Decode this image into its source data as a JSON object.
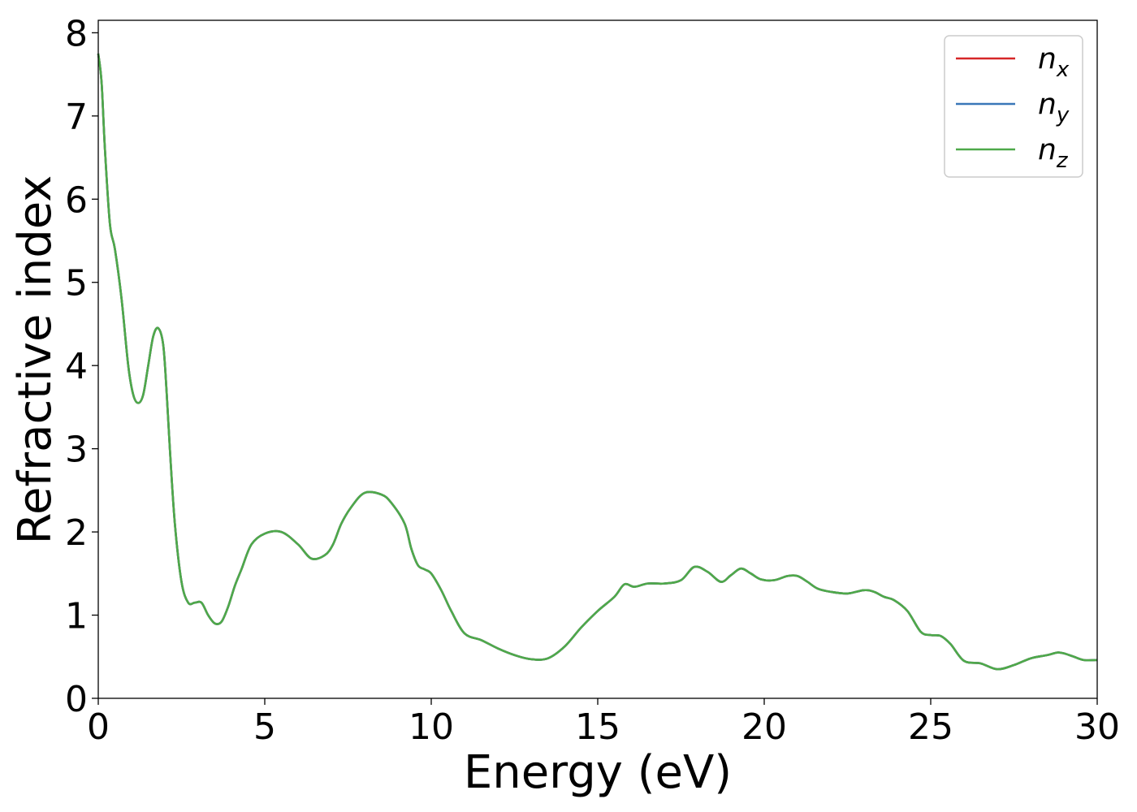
{
  "chart_data": {
    "type": "line",
    "title": "",
    "xlabel": "Energy (eV)",
    "ylabel": "Refractive index",
    "xlim": [
      0,
      30
    ],
    "ylim": [
      0,
      8.15
    ],
    "xticks": [
      0,
      5,
      10,
      15,
      20,
      25,
      30
    ],
    "yticks": [
      0,
      1,
      2,
      3,
      4,
      5,
      6,
      7,
      8
    ],
    "grid": false,
    "legend_position": "top-right",
    "colors": {
      "n_x": "#d62728",
      "n_y": "#3a77b8",
      "n_z": "#4ea94a"
    },
    "x": [
      0.0,
      0.1,
      0.2,
      0.35,
      0.5,
      0.7,
      0.9,
      1.05,
      1.2,
      1.35,
      1.5,
      1.65,
      1.8,
      1.95,
      2.05,
      2.15,
      2.3,
      2.5,
      2.7,
      2.9,
      3.1,
      3.3,
      3.5,
      3.7,
      3.9,
      4.1,
      4.3,
      4.6,
      5.0,
      5.5,
      6.0,
      6.4,
      6.8,
      7.05,
      7.3,
      7.6,
      8.0,
      8.5,
      8.8,
      9.2,
      9.4,
      9.6,
      9.8,
      10.0,
      10.3,
      10.6,
      11.0,
      11.5,
      12.0,
      12.5,
      13.0,
      13.5,
      14.0,
      14.5,
      15.0,
      15.5,
      15.8,
      16.1,
      16.5,
      17.0,
      17.5,
      17.9,
      18.3,
      18.7,
      19.0,
      19.3,
      19.6,
      19.9,
      20.3,
      20.7,
      21.0,
      21.3,
      21.6,
      22.0,
      22.5,
      23.0,
      23.3,
      23.6,
      23.9,
      24.3,
      24.7,
      25.0,
      25.3,
      25.6,
      26.0,
      26.5,
      27.0,
      27.5,
      28.0,
      28.5,
      28.8,
      29.0,
      29.3,
      29.6,
      30.0
    ],
    "series": [
      {
        "name": "$n_x$",
        "values": [
          7.75,
          7.4,
          6.6,
          5.7,
          5.4,
          4.8,
          4.0,
          3.65,
          3.55,
          3.65,
          4.0,
          4.35,
          4.45,
          4.25,
          3.7,
          3.0,
          2.1,
          1.4,
          1.15,
          1.15,
          1.15,
          1.0,
          0.9,
          0.92,
          1.1,
          1.35,
          1.55,
          1.85,
          1.98,
          2.0,
          1.85,
          1.68,
          1.72,
          1.85,
          2.1,
          2.3,
          2.47,
          2.45,
          2.35,
          2.1,
          1.8,
          1.6,
          1.55,
          1.5,
          1.3,
          1.05,
          0.78,
          0.7,
          0.6,
          0.52,
          0.47,
          0.48,
          0.62,
          0.85,
          1.05,
          1.22,
          1.37,
          1.34,
          1.38,
          1.38,
          1.42,
          1.58,
          1.52,
          1.4,
          1.48,
          1.56,
          1.5,
          1.43,
          1.42,
          1.47,
          1.47,
          1.4,
          1.32,
          1.28,
          1.26,
          1.3,
          1.28,
          1.22,
          1.18,
          1.05,
          0.8,
          0.76,
          0.75,
          0.65,
          0.45,
          0.42,
          0.35,
          0.4,
          0.48,
          0.52,
          0.55,
          0.54,
          0.5,
          0.46,
          0.46
        ]
      },
      {
        "name": "$n_y$",
        "values": [
          7.75,
          7.4,
          6.6,
          5.7,
          5.4,
          4.8,
          4.0,
          3.65,
          3.55,
          3.65,
          4.0,
          4.35,
          4.45,
          4.25,
          3.7,
          3.0,
          2.1,
          1.4,
          1.15,
          1.15,
          1.15,
          1.0,
          0.9,
          0.92,
          1.1,
          1.35,
          1.55,
          1.85,
          1.98,
          2.0,
          1.85,
          1.68,
          1.72,
          1.85,
          2.1,
          2.3,
          2.47,
          2.45,
          2.35,
          2.1,
          1.8,
          1.6,
          1.55,
          1.5,
          1.3,
          1.05,
          0.78,
          0.7,
          0.6,
          0.52,
          0.47,
          0.48,
          0.62,
          0.85,
          1.05,
          1.22,
          1.37,
          1.34,
          1.38,
          1.38,
          1.42,
          1.58,
          1.52,
          1.4,
          1.48,
          1.56,
          1.5,
          1.43,
          1.42,
          1.47,
          1.47,
          1.4,
          1.32,
          1.28,
          1.26,
          1.3,
          1.28,
          1.22,
          1.18,
          1.05,
          0.8,
          0.76,
          0.75,
          0.65,
          0.45,
          0.42,
          0.35,
          0.4,
          0.48,
          0.52,
          0.55,
          0.54,
          0.5,
          0.46,
          0.46
        ]
      },
      {
        "name": "$n_z$",
        "values": [
          7.75,
          7.4,
          6.6,
          5.7,
          5.4,
          4.8,
          4.0,
          3.65,
          3.55,
          3.65,
          4.0,
          4.35,
          4.45,
          4.25,
          3.7,
          3.0,
          2.1,
          1.4,
          1.15,
          1.15,
          1.15,
          1.0,
          0.9,
          0.92,
          1.1,
          1.35,
          1.55,
          1.85,
          1.98,
          2.0,
          1.85,
          1.68,
          1.72,
          1.85,
          2.1,
          2.3,
          2.47,
          2.45,
          2.35,
          2.1,
          1.8,
          1.6,
          1.55,
          1.5,
          1.3,
          1.05,
          0.78,
          0.7,
          0.6,
          0.52,
          0.47,
          0.48,
          0.62,
          0.85,
          1.05,
          1.22,
          1.37,
          1.34,
          1.38,
          1.38,
          1.42,
          1.58,
          1.52,
          1.4,
          1.48,
          1.56,
          1.5,
          1.43,
          1.42,
          1.47,
          1.47,
          1.4,
          1.32,
          1.28,
          1.26,
          1.3,
          1.28,
          1.22,
          1.18,
          1.05,
          0.8,
          0.76,
          0.75,
          0.65,
          0.45,
          0.42,
          0.35,
          0.4,
          0.48,
          0.52,
          0.55,
          0.54,
          0.5,
          0.46,
          0.46
        ]
      }
    ],
    "legend": [
      {
        "base": "n",
        "sub": "x",
        "series": 0
      },
      {
        "base": "n",
        "sub": "y",
        "series": 1
      },
      {
        "base": "n",
        "sub": "z",
        "series": 2
      }
    ]
  }
}
